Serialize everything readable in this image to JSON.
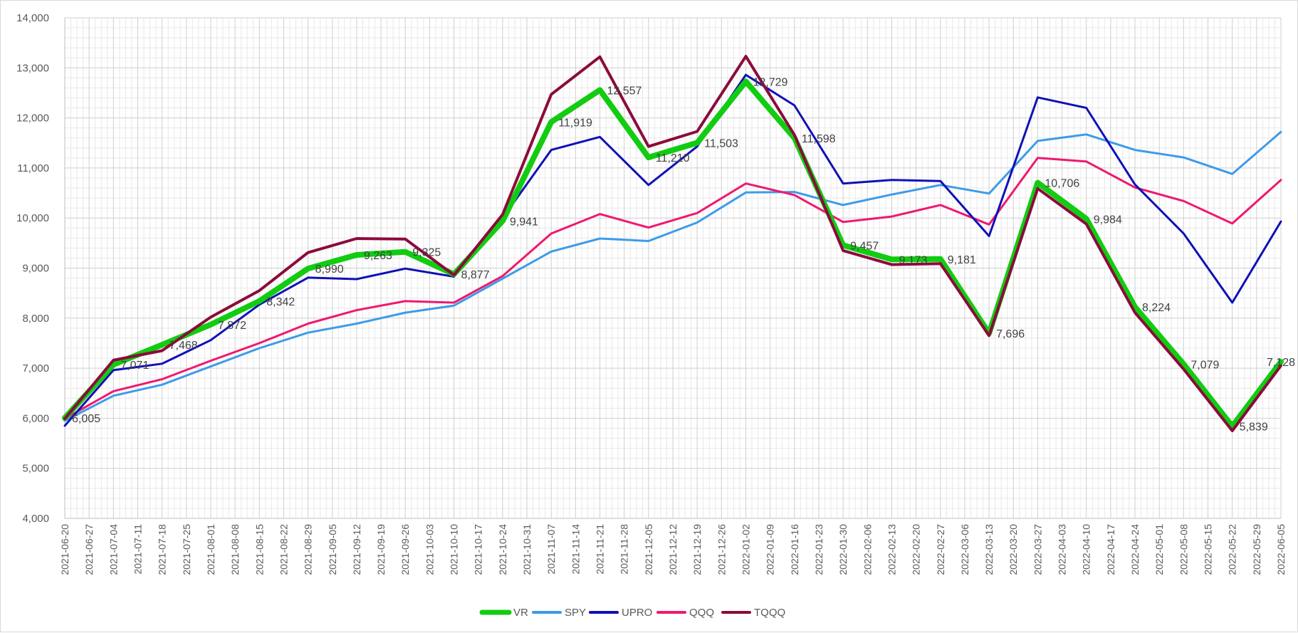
{
  "chart_data": {
    "type": "line",
    "grid": true,
    "legend_position": "bottom",
    "ylim": [
      4000,
      14000
    ],
    "y_ticks": [
      "4,000",
      "5,000",
      "6,000",
      "7,000",
      "8,000",
      "9,000",
      "10,000",
      "11,000",
      "12,000",
      "13,000",
      "14,000"
    ],
    "categories": [
      "2021-06-20",
      "2021-06-27",
      "2021-07-04",
      "2021-07-11",
      "2021-07-18",
      "2021-07-25",
      "2021-08-01",
      "2021-08-08",
      "2021-08-15",
      "2021-08-22",
      "2021-08-29",
      "2021-09-05",
      "2021-09-12",
      "2021-09-19",
      "2021-09-26",
      "2021-10-03",
      "2021-10-10",
      "2021-10-17",
      "2021-10-24",
      "2021-10-31",
      "2021-11-07",
      "2021-11-14",
      "2021-11-21",
      "2021-11-28",
      "2021-12-05",
      "2021-12-12",
      "2021-12-19",
      "2021-12-26",
      "2022-01-02",
      "2022-01-09",
      "2022-01-16",
      "2022-01-23",
      "2022-01-30",
      "2022-02-06",
      "2022-02-13",
      "2022-02-20",
      "2022-02-27",
      "2022-03-06",
      "2022-03-13",
      "2022-03-20",
      "2022-03-27",
      "2022-04-03",
      "2022-04-10",
      "2022-04-17",
      "2022-04-24",
      "2022-05-01",
      "2022-05-08",
      "2022-05-15",
      "2022-05-22",
      "2022-05-29",
      "2022-06-05"
    ],
    "series": [
      {
        "name": "SPY",
        "color": "#3d9be9",
        "width": 3,
        "points": [
          [
            0,
            5950
          ],
          [
            2,
            6450
          ],
          [
            4,
            6670
          ],
          [
            8,
            7400
          ],
          [
            10,
            7710
          ],
          [
            12,
            7890
          ],
          [
            14,
            8110
          ],
          [
            16,
            8250
          ],
          [
            18,
            8790
          ],
          [
            20,
            9330
          ],
          [
            22,
            9590
          ],
          [
            24,
            9540
          ],
          [
            26,
            9910
          ],
          [
            28,
            10510
          ],
          [
            30,
            10520
          ],
          [
            32,
            10260
          ],
          [
            34,
            10470
          ],
          [
            36,
            10660
          ],
          [
            38,
            10490
          ],
          [
            40,
            11540
          ],
          [
            42,
            11670
          ],
          [
            44,
            11360
          ],
          [
            46,
            11210
          ],
          [
            48,
            10880
          ],
          [
            50,
            11720
          ]
        ]
      },
      {
        "name": "QQQ",
        "color": "#f0186e",
        "width": 3,
        "points": [
          [
            0,
            5990
          ],
          [
            2,
            6540
          ],
          [
            4,
            6780
          ],
          [
            6,
            7150
          ],
          [
            8,
            7500
          ],
          [
            10,
            7890
          ],
          [
            12,
            8160
          ],
          [
            14,
            8340
          ],
          [
            16,
            8310
          ],
          [
            18,
            8840
          ],
          [
            20,
            9690
          ],
          [
            22,
            10080
          ],
          [
            24,
            9810
          ],
          [
            26,
            10100
          ],
          [
            28,
            10690
          ],
          [
            30,
            10460
          ],
          [
            32,
            9920
          ],
          [
            34,
            10030
          ],
          [
            36,
            10260
          ],
          [
            38,
            9870
          ],
          [
            40,
            11200
          ],
          [
            42,
            11130
          ],
          [
            44,
            10610
          ],
          [
            46,
            10340
          ],
          [
            48,
            9890
          ],
          [
            50,
            10760
          ]
        ]
      },
      {
        "name": "UPRO",
        "color": "#1010b8",
        "width": 3,
        "points": [
          [
            0,
            5850
          ],
          [
            2,
            6960
          ],
          [
            4,
            7090
          ],
          [
            6,
            7560
          ],
          [
            8,
            8270
          ],
          [
            10,
            8810
          ],
          [
            12,
            8780
          ],
          [
            14,
            8990
          ],
          [
            16,
            8830
          ],
          [
            18,
            10000
          ],
          [
            20,
            11360
          ],
          [
            22,
            11620
          ],
          [
            24,
            10660
          ],
          [
            26,
            11430
          ],
          [
            28,
            12860
          ],
          [
            30,
            12250
          ],
          [
            32,
            10690
          ],
          [
            34,
            10760
          ],
          [
            36,
            10740
          ],
          [
            38,
            9640
          ],
          [
            40,
            12410
          ],
          [
            42,
            12200
          ],
          [
            44,
            10670
          ],
          [
            46,
            9690
          ],
          [
            48,
            8310
          ],
          [
            50,
            9930
          ]
        ]
      },
      {
        "name": "VR",
        "color": "#11cc11",
        "width": 8,
        "points": [
          [
            0,
            6005
          ],
          [
            2,
            7071
          ],
          [
            4,
            7468
          ],
          [
            6,
            7872
          ],
          [
            8,
            8342
          ],
          [
            10,
            8990
          ],
          [
            12,
            9263
          ],
          [
            14,
            9325
          ],
          [
            16,
            8877
          ],
          [
            18,
            9941
          ],
          [
            20,
            11919
          ],
          [
            22,
            12557
          ],
          [
            24,
            11210
          ],
          [
            26,
            11503
          ],
          [
            28,
            12729
          ],
          [
            30,
            11598
          ],
          [
            32,
            9457
          ],
          [
            34,
            9173
          ],
          [
            36,
            9181
          ],
          [
            38,
            7696
          ],
          [
            40,
            10706
          ],
          [
            42,
            9984
          ],
          [
            44,
            8224
          ],
          [
            46,
            7079
          ],
          [
            48,
            5839
          ],
          [
            50,
            7128
          ]
        ]
      },
      {
        "name": "TQQQ",
        "color": "#8b0b3c",
        "width": 4,
        "points": [
          [
            0,
            5990
          ],
          [
            2,
            7160
          ],
          [
            4,
            7350
          ],
          [
            6,
            8020
          ],
          [
            8,
            8550
          ],
          [
            10,
            9310
          ],
          [
            12,
            9590
          ],
          [
            14,
            9580
          ],
          [
            16,
            8860
          ],
          [
            18,
            10070
          ],
          [
            20,
            12470
          ],
          [
            22,
            13220
          ],
          [
            24,
            11430
          ],
          [
            26,
            11730
          ],
          [
            28,
            13230
          ],
          [
            30,
            11660
          ],
          [
            32,
            9350
          ],
          [
            34,
            9070
          ],
          [
            36,
            9090
          ],
          [
            38,
            7650
          ],
          [
            40,
            10590
          ],
          [
            42,
            9880
          ],
          [
            44,
            8110
          ],
          [
            46,
            6980
          ],
          [
            48,
            5750
          ],
          [
            50,
            7050
          ]
        ]
      }
    ],
    "data_labels": [
      {
        "x": 0,
        "y": 6005,
        "text": "6,005"
      },
      {
        "x": 2,
        "y": 7071,
        "text": "7,071"
      },
      {
        "x": 4,
        "y": 7468,
        "text": "7,468"
      },
      {
        "x": 6,
        "y": 7872,
        "text": "7,872"
      },
      {
        "x": 8,
        "y": 8342,
        "text": "8,342"
      },
      {
        "x": 10,
        "y": 8990,
        "text": "8,990"
      },
      {
        "x": 12,
        "y": 9263,
        "text": "9,263"
      },
      {
        "x": 14,
        "y": 9325,
        "text": "9,325"
      },
      {
        "x": 16,
        "y": 8877,
        "text": "8,877"
      },
      {
        "x": 18,
        "y": 9941,
        "text": "9,941"
      },
      {
        "x": 20,
        "y": 11919,
        "text": "11,919"
      },
      {
        "x": 22,
        "y": 12557,
        "text": "12,557"
      },
      {
        "x": 24,
        "y": 11210,
        "text": "11,210"
      },
      {
        "x": 26,
        "y": 11503,
        "text": "11,503"
      },
      {
        "x": 28,
        "y": 12729,
        "text": "12,729"
      },
      {
        "x": 30,
        "y": 11598,
        "text": "11,598"
      },
      {
        "x": 32,
        "y": 9457,
        "text": "9,457"
      },
      {
        "x": 34,
        "y": 9173,
        "text": "9,173"
      },
      {
        "x": 36,
        "y": 9181,
        "text": "9,181"
      },
      {
        "x": 38,
        "y": 7696,
        "text": "7,696"
      },
      {
        "x": 40,
        "y": 10706,
        "text": "10,706"
      },
      {
        "x": 42,
        "y": 9984,
        "text": "9,984"
      },
      {
        "x": 44,
        "y": 8224,
        "text": "8,224"
      },
      {
        "x": 46,
        "y": 7079,
        "text": "7,079"
      },
      {
        "x": 48,
        "y": 5839,
        "text": "5,839"
      },
      {
        "x": 50,
        "y": 7128,
        "text": "7,128"
      }
    ],
    "legend": [
      "VR",
      "SPY",
      "UPRO",
      "QQQ",
      "TQQQ"
    ]
  }
}
